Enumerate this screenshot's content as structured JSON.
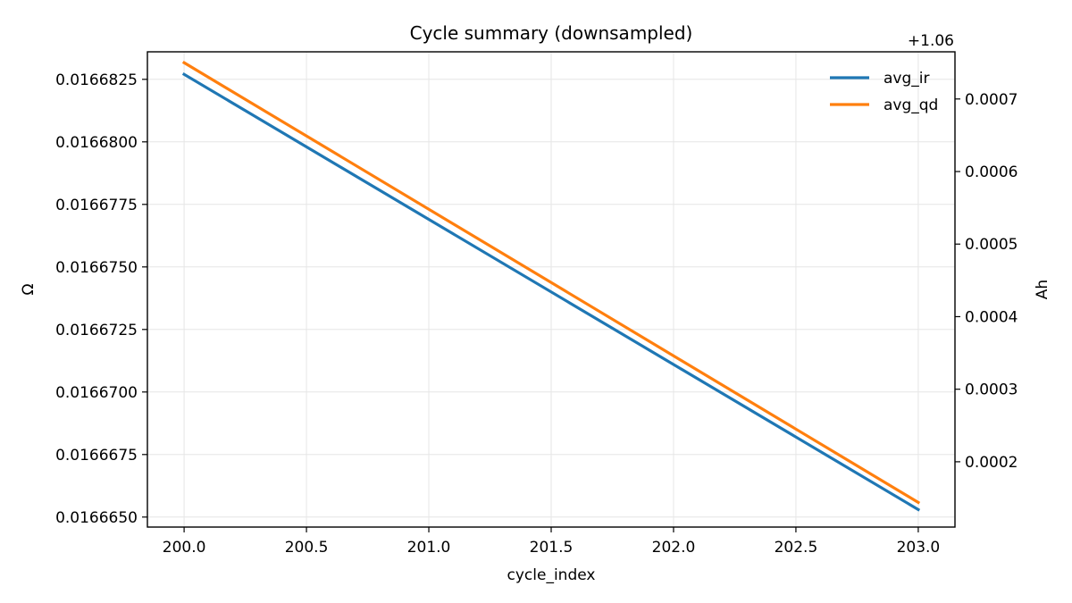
{
  "chart_data": {
    "type": "line",
    "title": "Cycle summary (downsampled)",
    "xlabel": "cycle_index",
    "ylabel_left": "Ω",
    "ylabel_right": "Ah",
    "right_offset_label": "+1.06",
    "xlim": [
      199.85,
      203.15
    ],
    "ylim_left": [
      0.0166646,
      0.0166836
    ],
    "ylim_right": [
      1.06011,
      1.060765
    ],
    "x_ticks": [
      200.0,
      200.5,
      201.0,
      201.5,
      202.0,
      202.5,
      203.0
    ],
    "x_tick_labels": [
      "200.0",
      "200.5",
      "201.0",
      "201.5",
      "202.0",
      "202.5",
      "203.0"
    ],
    "y_left_ticks": [
      0.016665,
      0.0166675,
      0.01667,
      0.0166725,
      0.016675,
      0.0166775,
      0.01668,
      0.0166825
    ],
    "y_left_tick_labels": [
      "0.0166650",
      "0.0166675",
      "0.0166700",
      "0.0166725",
      "0.0166750",
      "0.0166775",
      "0.0166800",
      "0.0166825"
    ],
    "y_right_ticks": [
      1.0602,
      1.0603,
      1.0604,
      1.0605,
      1.0606,
      1.0607
    ],
    "y_right_tick_labels": [
      "0.0002",
      "0.0003",
      "0.0004",
      "0.0005",
      "0.0006",
      "0.0007"
    ],
    "grid": true,
    "legend_position": "top-right",
    "series": [
      {
        "name": "avg_ir",
        "axis": "left",
        "color": "#1f77b4",
        "x": [
          200.0,
          203.0
        ],
        "y": [
          0.0166827,
          0.0166653
        ]
      },
      {
        "name": "avg_qd",
        "axis": "right",
        "color": "#ff7f0e",
        "x": [
          200.0,
          203.0
        ],
        "y": [
          1.06075,
          1.060144
        ]
      }
    ]
  }
}
